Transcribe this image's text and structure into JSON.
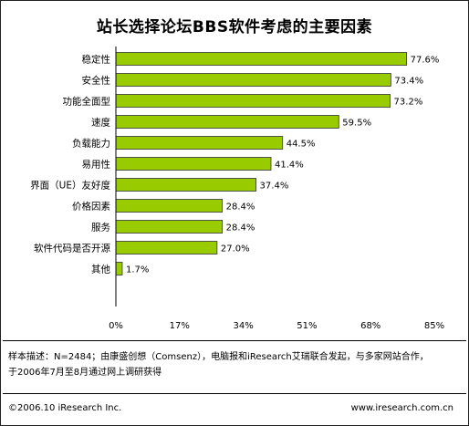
{
  "chart_data": {
    "type": "bar",
    "orientation": "horizontal",
    "title": "站长选择论坛BBS软件考虑的主要因素",
    "categories": [
      "稳定性",
      "安全性",
      "功能全面型",
      "速度",
      "负载能力",
      "易用性",
      "界面（UE）友好度",
      "价格因素",
      "服务",
      "软件代码是否开源",
      "其他"
    ],
    "values": [
      77.6,
      73.4,
      73.2,
      59.5,
      44.5,
      41.4,
      37.4,
      28.4,
      28.4,
      27.0,
      1.7
    ],
    "value_labels": [
      "77.6%",
      "73.4%",
      "73.2%",
      "59.5%",
      "44.5%",
      "41.4%",
      "37.4%",
      "28.4%",
      "28.4%",
      "27.0%",
      "1.7%"
    ],
    "xlim": [
      0,
      85
    ],
    "xticks": [
      0,
      17,
      34,
      51,
      68,
      85
    ],
    "xtick_labels": [
      "0%",
      "17%",
      "34%",
      "51%",
      "68%",
      "85%"
    ],
    "grid": false,
    "legend": "none",
    "bar_color": "#99cc00",
    "bar_edge_color": "#333333"
  },
  "footer": {
    "note_line1": "样本描述：N=2484；由康盛创想（Comsenz），电脑报和iResearch艾瑞联合发起，与多家网站合作，",
    "note_line2": "于2006年7月至8月通过网上调研获得",
    "copyright": "©2006.10 iResearch Inc.",
    "website": "www.iresearch.com.cn"
  }
}
